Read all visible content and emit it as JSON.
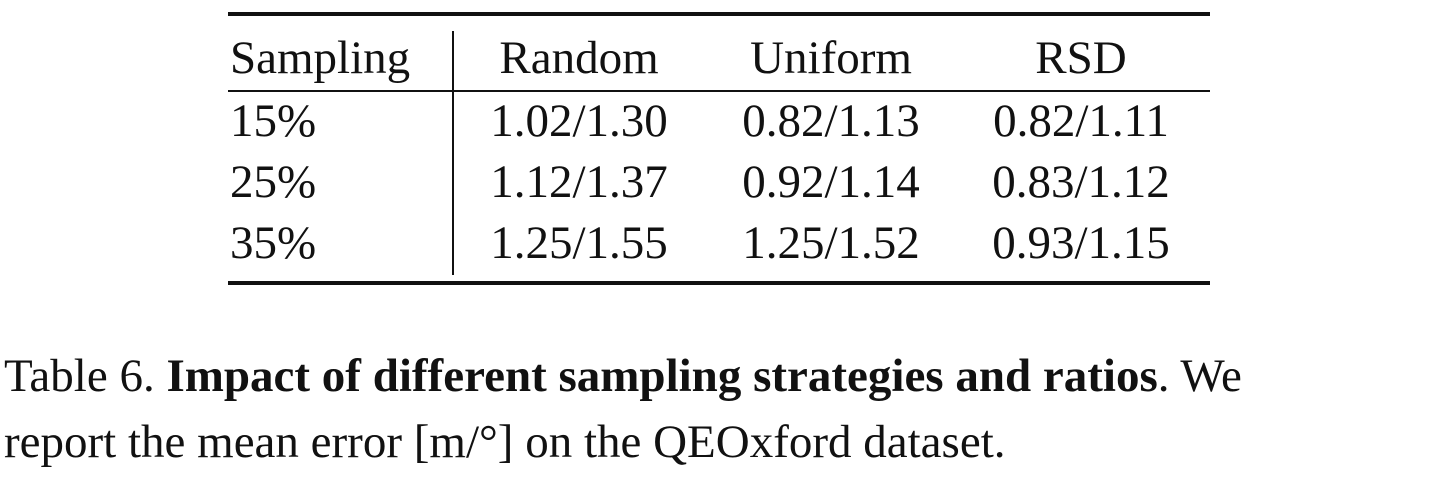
{
  "table": {
    "columns": [
      "Sampling",
      "Random",
      "Uniform",
      "RSD"
    ],
    "rows": [
      [
        "15%",
        "1.02/1.30",
        "0.82/1.13",
        "0.82/1.11"
      ],
      [
        "25%",
        "1.12/1.37",
        "0.92/1.14",
        "0.83/1.12"
      ],
      [
        "35%",
        "1.25/1.55",
        "1.25/1.52",
        "0.93/1.15"
      ]
    ]
  },
  "caption": {
    "label": "Table 6. ",
    "bold_title": "Impact of different sampling strategies and ratios",
    "rest_line1": ". We",
    "line2": "report the mean error [m/°] on the QEOxford dataset."
  }
}
